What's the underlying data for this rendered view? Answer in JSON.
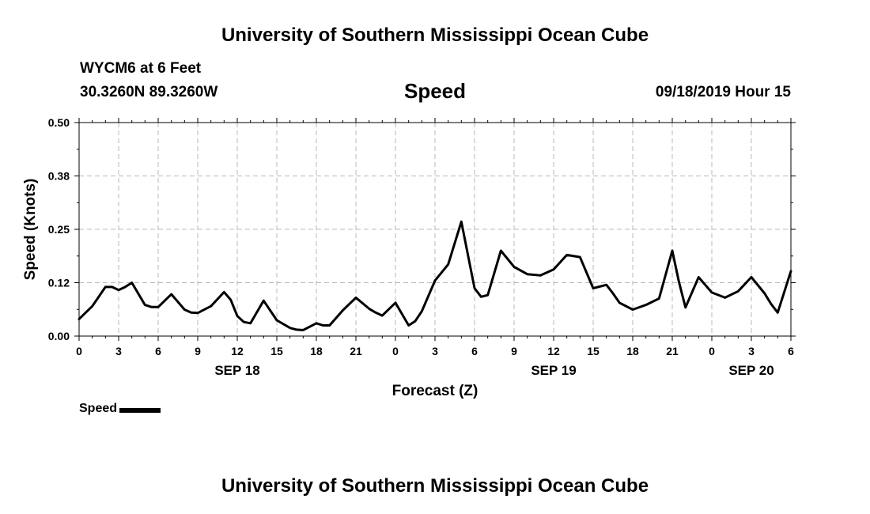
{
  "header": {
    "title": "University of Southern Mississippi Ocean Cube",
    "station": "WYCM6 at 6 Feet",
    "coords": "30.3260N 89.3260W",
    "datetime": "09/18/2019 Hour 15"
  },
  "footer": {
    "title": "University of Southern Mississippi Ocean Cube"
  },
  "legend": {
    "label": "Speed",
    "color": "#000000"
  },
  "chart_data": {
    "type": "line",
    "title": "Speed",
    "xlabel": "Forecast (Z)",
    "ylabel": "Speed (Knots)",
    "xlim": [
      0,
      54
    ],
    "ylim": [
      0,
      0.5
    ],
    "yticks": [
      0.0,
      0.125,
      0.25,
      0.375,
      0.5
    ],
    "ytick_labels": [
      "0.00",
      "0.12",
      "0.25",
      "0.38",
      "0.50"
    ],
    "xticks": [
      0,
      3,
      6,
      9,
      12,
      15,
      18,
      21,
      24,
      27,
      30,
      33,
      36,
      39,
      42,
      45,
      48,
      51,
      54
    ],
    "xtick_labels": [
      "0",
      "3",
      "6",
      "9",
      "12",
      "15",
      "18",
      "21",
      "0",
      "3",
      "6",
      "9",
      "12",
      "15",
      "18",
      "21",
      "0",
      "3",
      "6"
    ],
    "date_labels": [
      {
        "x": 12,
        "label": "SEP 18"
      },
      {
        "x": 36,
        "label": "SEP 19"
      },
      {
        "x": 51,
        "label": "SEP 20"
      }
    ],
    "grid": true,
    "series": [
      {
        "name": "Speed",
        "color": "#000000",
        "x": [
          0,
          1,
          2,
          2.5,
          3,
          3.5,
          4,
          5,
          5.5,
          6,
          7,
          8,
          8.5,
          9,
          10,
          11,
          11.5,
          12,
          12.5,
          13,
          14,
          15,
          16,
          16.5,
          17,
          18,
          18.5,
          19,
          20,
          21,
          22,
          22.5,
          23,
          24,
          25,
          25.5,
          26,
          27,
          28,
          29,
          30,
          30.5,
          31,
          32,
          33,
          34,
          35,
          36,
          37,
          38,
          39,
          40,
          40.5,
          41,
          42,
          43,
          44,
          45,
          45.5,
          46,
          47,
          48,
          49,
          50,
          51,
          52,
          52.5,
          53,
          54
        ],
        "values": [
          0.04,
          0.07,
          0.115,
          0.115,
          0.108,
          0.115,
          0.125,
          0.073,
          0.068,
          0.068,
          0.098,
          0.062,
          0.055,
          0.054,
          0.07,
          0.103,
          0.085,
          0.047,
          0.033,
          0.03,
          0.083,
          0.037,
          0.019,
          0.015,
          0.014,
          0.03,
          0.025,
          0.025,
          0.06,
          0.09,
          0.064,
          0.055,
          0.048,
          0.078,
          0.025,
          0.035,
          0.058,
          0.13,
          0.168,
          0.268,
          0.112,
          0.092,
          0.096,
          0.2,
          0.162,
          0.145,
          0.142,
          0.156,
          0.19,
          0.185,
          0.112,
          0.12,
          0.1,
          0.078,
          0.062,
          0.073,
          0.088,
          0.2,
          0.128,
          0.067,
          0.138,
          0.102,
          0.09,
          0.105,
          0.138,
          0.1,
          0.075,
          0.055,
          0.152
        ]
      }
    ]
  }
}
